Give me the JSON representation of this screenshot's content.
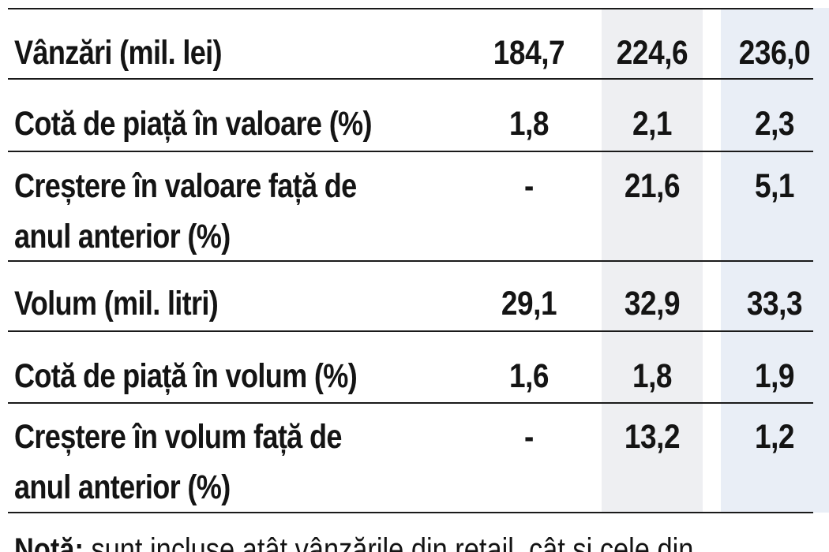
{
  "table": {
    "rows": [
      {
        "label": "Vânzări (mil. lei)",
        "values": [
          "184,7",
          "224,6",
          "236,0"
        ]
      },
      {
        "label": "Cotă de piață în valoare (%)",
        "values": [
          "1,8",
          "2,1",
          "2,3"
        ]
      },
      {
        "label": "Creștere în valoare față de\nanul anterior (%)",
        "values": [
          "-",
          "21,6",
          "5,1"
        ]
      },
      {
        "label": "Volum (mil. litri)",
        "values": [
          "29,1",
          "32,9",
          "33,3"
        ]
      },
      {
        "label": "Cotă de piață în volum (%)",
        "values": [
          "1,6",
          "1,8",
          "1,9"
        ]
      },
      {
        "label": "Creștere în volum față de\nanul anterior (%)",
        "values": [
          "-",
          "13,2",
          "1,2"
        ]
      }
    ]
  },
  "note": {
    "label": "Notă:",
    "text": " sunt incluse atât vânzările din retail, cât și cele din"
  }
}
